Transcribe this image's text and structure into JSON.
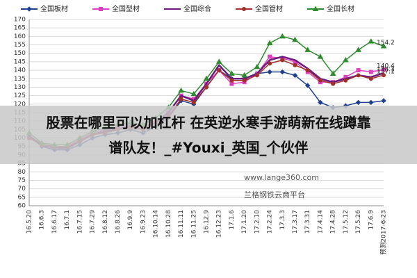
{
  "chart_data": {
    "type": "line",
    "categories": [
      "16.5.20",
      "16.6.3",
      "16.6.17",
      "16.7.1",
      "16.7.15",
      "16.7.29",
      "16.8.12",
      "16.8.26",
      "16.9.9",
      "16.9.23",
      "16.10.14",
      "16.10.28",
      "16.11.11",
      "16.11.25",
      "16.12.9",
      "16.12.23",
      "17.1.6",
      "17.1.20",
      "17.2.10",
      "17.2.24",
      "17.3.3",
      "17.3.17",
      "17.3.31",
      "17.4.14",
      "17.4.28",
      "17.5.12",
      "17.5.26",
      "17.6.9",
      "预测2017-6-23"
    ],
    "series": [
      {
        "name": "全国板材",
        "color": "#1f3f8f",
        "marker": "diamond",
        "label_last": false,
        "values": [
          101,
          95,
          93,
          93,
          96,
          100,
          102,
          103,
          105,
          103,
          107,
          112,
          122,
          120,
          130,
          140,
          135,
          135,
          138,
          139,
          139,
          137,
          131,
          121,
          118,
          119,
          121,
          121,
          122
        ]
      },
      {
        "name": "全国型材",
        "color": "#e040c0",
        "marker": "square",
        "label_last": true,
        "values": [
          100,
          96,
          95,
          95,
          99,
          103,
          105,
          106,
          108,
          106,
          110,
          115,
          125,
          123,
          132,
          140,
          132,
          133,
          138,
          148,
          147,
          145,
          139,
          133,
          133,
          136,
          140,
          139,
          140.4
        ]
      },
      {
        "name": "全国综合",
        "color": "#6a1a7a",
        "marker": "none",
        "label_last": true,
        "values": [
          101,
          96,
          94,
          94,
          98,
          102,
          104,
          105,
          107,
          105,
          109,
          115,
          125,
          122,
          132,
          143,
          135,
          135,
          138,
          146,
          148,
          146,
          141,
          135,
          133,
          135,
          137,
          136,
          138.3
        ]
      },
      {
        "name": "全国管材",
        "color": "#a0302a",
        "marker": "circle",
        "label_last": true,
        "values": [
          100,
          96,
          95,
          95,
          98,
          102,
          103,
          105,
          106,
          105,
          109,
          113,
          123,
          121,
          130,
          140,
          134,
          134,
          137,
          144,
          146,
          143,
          140,
          134,
          132,
          134,
          137,
          135,
          137.1
        ]
      },
      {
        "name": "全国长材",
        "color": "#2e8b2e",
        "marker": "triangle",
        "label_last": true,
        "values": [
          103,
          97,
          96,
          96,
          100,
          104,
          106,
          108,
          109,
          108,
          112,
          118,
          128,
          126,
          135,
          145,
          138,
          137,
          142,
          156,
          160,
          158,
          152,
          148,
          138,
          146,
          152,
          157,
          154.2
        ]
      }
    ],
    "ylim": [
      60,
      170
    ],
    "yticks": [
      60,
      65,
      70,
      75,
      80,
      85,
      90,
      95,
      100,
      105,
      110,
      115,
      120,
      125,
      130,
      135,
      140,
      145,
      150,
      155,
      160,
      165,
      170
    ],
    "grid": true,
    "legend": "top",
    "watermarks": [
      "www.lange360.com",
      "兰格钢铁云商平台"
    ]
  },
  "overlay_lines": [
    "股票在哪里可以加杠杆 在英逆水寒手游萌新在线蹲靠",
    "谱队友！_#Youxi_英国_个伙伴"
  ]
}
